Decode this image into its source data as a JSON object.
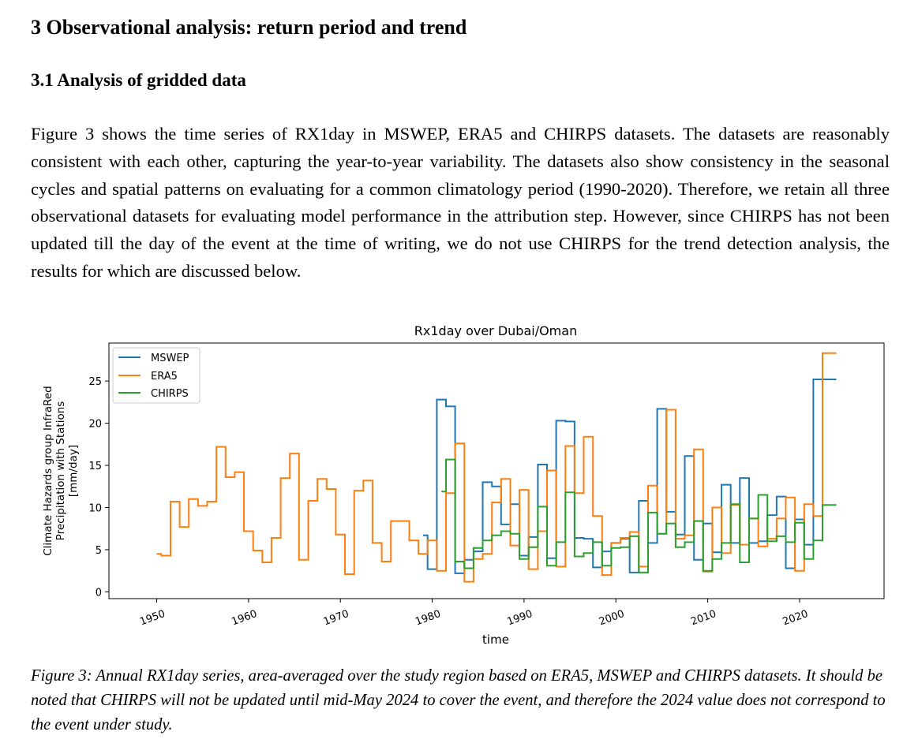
{
  "section": {
    "heading": "3 Observational analysis: return period and trend",
    "subheading": "3.1 Analysis of gridded data",
    "paragraph": "Figure 3 shows the time series of RX1day in MSWEP, ERA5 and CHIRPS datasets. The datasets are reasonably consistent with each other, capturing the year-to-year variability. The datasets also show consistency in the seasonal cycles and spatial patterns on evaluating for a common climatology period (1990-2020). Therefore, we retain all three observational datasets for evaluating model performance in the attribution step. However, since CHIRPS has not been updated till the day of the event at the time of writing, we do not use CHIRPS for the trend detection analysis, the results for which are discussed below."
  },
  "figure": {
    "caption": "Figure 3: Annual RX1day series, area-averaged over the study region based on ERA5, MSWEP and CHIRPS datasets. It should be noted that CHIRPS will not be updated until mid-May 2024 to cover the event, and therefore the 2024 value does not correspond to the event under study."
  },
  "chart_data": {
    "type": "line",
    "step": "mid",
    "title": "Rx1day over Dubai/Oman",
    "xlabel": "time",
    "ylabel": [
      "Climate Hazards group InfraRed",
      "Precipitation with Stations",
      "[mm/day]"
    ],
    "xlim": [
      1944.8,
      2029.2
    ],
    "ylim": [
      -0.8,
      29.5
    ],
    "xticks": [
      1950,
      1960,
      1970,
      1980,
      1990,
      2000,
      2010,
      2020
    ],
    "yticks": [
      0,
      5,
      10,
      15,
      20,
      25
    ],
    "grid": false,
    "legend_position": "top-left",
    "series": [
      {
        "name": "MSWEP",
        "color": "#1f77b4",
        "x": [
          1979,
          1980,
          1981,
          1982,
          1983,
          1984,
          1985,
          1986,
          1987,
          1988,
          1989,
          1990,
          1991,
          1992,
          1993,
          1994,
          1995,
          1996,
          1997,
          1998,
          1999,
          2000,
          2001,
          2002,
          2003,
          2004,
          2005,
          2006,
          2007,
          2008,
          2009,
          2010,
          2011,
          2012,
          2013,
          2014,
          2015,
          2016,
          2017,
          2018,
          2019,
          2020,
          2021,
          2022,
          2023,
          2024
        ],
        "values": [
          6.7,
          2.7,
          22.8,
          22.0,
          2.2,
          3.8,
          4.8,
          13.0,
          12.5,
          8.0,
          10.4,
          4.3,
          6.5,
          15.1,
          4.0,
          20.3,
          20.2,
          6.4,
          6.3,
          2.9,
          4.8,
          5.8,
          6.3,
          2.3,
          10.8,
          5.8,
          21.7,
          9.5,
          6.8,
          16.1,
          3.8,
          8.1,
          4.7,
          12.7,
          5.8,
          13.5,
          5.8,
          6.0,
          9.1,
          11.3,
          2.8,
          8.6,
          5.6,
          25.2,
          25.2,
          25.2
        ]
      },
      {
        "name": "ERA5",
        "color": "#ff7f0e",
        "x": [
          1950,
          1951,
          1952,
          1953,
          1954,
          1955,
          1956,
          1957,
          1958,
          1959,
          1960,
          1961,
          1962,
          1963,
          1964,
          1965,
          1966,
          1967,
          1968,
          1969,
          1970,
          1971,
          1972,
          1973,
          1974,
          1975,
          1976,
          1977,
          1978,
          1979,
          1980,
          1981,
          1982,
          1983,
          1984,
          1985,
          1986,
          1987,
          1988,
          1989,
          1990,
          1991,
          1992,
          1993,
          1994,
          1995,
          1996,
          1997,
          1998,
          1999,
          2000,
          2001,
          2002,
          2003,
          2004,
          2005,
          2006,
          2007,
          2008,
          2009,
          2010,
          2011,
          2012,
          2013,
          2014,
          2015,
          2016,
          2017,
          2018,
          2019,
          2020,
          2021,
          2022,
          2023,
          2024
        ],
        "values": [
          4.5,
          4.3,
          10.7,
          7.7,
          11.0,
          10.2,
          10.7,
          17.2,
          13.6,
          14.2,
          7.2,
          4.9,
          3.5,
          6.4,
          13.5,
          16.4,
          3.8,
          10.8,
          13.4,
          12.2,
          6.8,
          2.1,
          12.0,
          13.2,
          5.8,
          3.6,
          8.4,
          8.4,
          6.1,
          4.5,
          6.1,
          2.5,
          11.7,
          17.6,
          1.2,
          3.9,
          4.5,
          10.6,
          13.4,
          5.5,
          12.1,
          2.7,
          7.2,
          14.4,
          3.0,
          17.3,
          11.7,
          18.4,
          9.0,
          2.0,
          5.8,
          6.4,
          7.1,
          3.0,
          12.6,
          6.9,
          21.6,
          6.3,
          6.7,
          16.9,
          2.4,
          10.0,
          4.6,
          10.3,
          5.6,
          8.7,
          5.4,
          6.3,
          8.7,
          11.2,
          2.5,
          10.4,
          9.0,
          28.3,
          28.3
        ]
      },
      {
        "name": "CHIRPS",
        "color": "#2ca02c",
        "x": [
          1981,
          1982,
          1983,
          1984,
          1985,
          1986,
          1987,
          1988,
          1989,
          1990,
          1991,
          1992,
          1993,
          1994,
          1995,
          1996,
          1997,
          1998,
          1999,
          2000,
          2001,
          2002,
          2003,
          2004,
          2005,
          2006,
          2007,
          2008,
          2009,
          2010,
          2011,
          2012,
          2013,
          2014,
          2015,
          2016,
          2017,
          2018,
          2019,
          2020,
          2021,
          2022,
          2023,
          2024
        ],
        "values": [
          11.9,
          15.7,
          3.6,
          2.8,
          5.2,
          6.1,
          6.7,
          7.2,
          6.9,
          3.9,
          5.3,
          10.1,
          3.1,
          5.9,
          11.8,
          4.2,
          4.6,
          5.9,
          3.1,
          5.2,
          5.3,
          6.6,
          2.3,
          9.4,
          6.9,
          8.1,
          5.3,
          5.9,
          8.4,
          2.5,
          3.9,
          5.8,
          10.4,
          3.5,
          8.7,
          11.5,
          6.0,
          6.6,
          5.9,
          8.2,
          3.9,
          6.1,
          10.3,
          10.3
        ]
      }
    ]
  }
}
